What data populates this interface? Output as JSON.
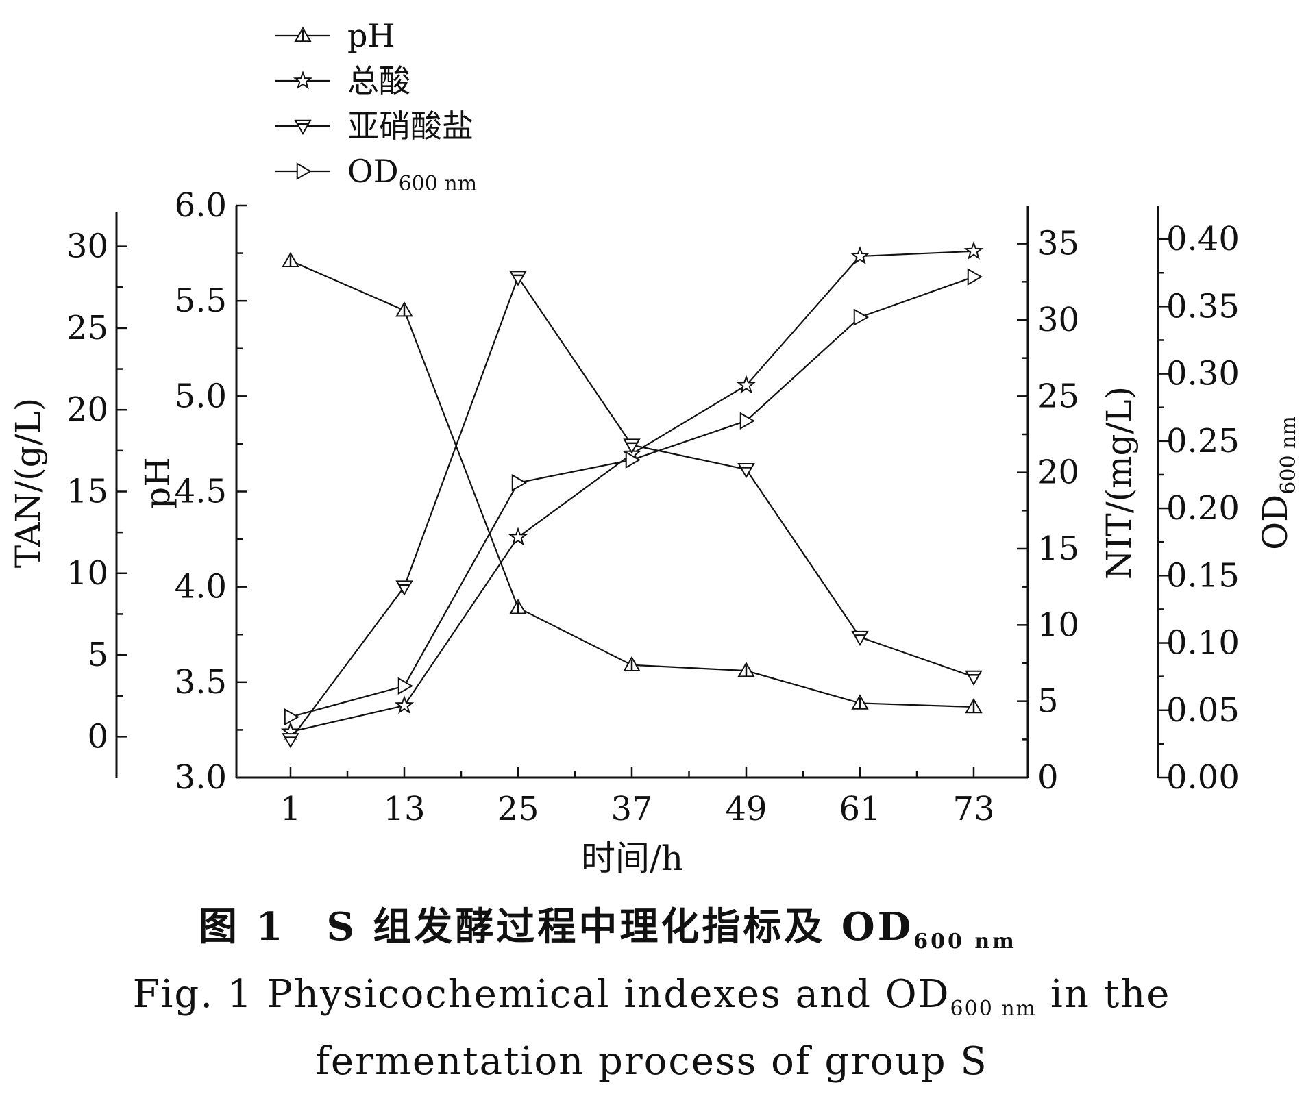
{
  "chart_data": {
    "type": "line",
    "xlabel": "时间/h",
    "x": [
      1,
      13,
      25,
      37,
      49,
      61,
      73
    ],
    "axes": {
      "pH": {
        "label": "pH",
        "range": [
          3.0,
          6.0
        ],
        "ticks": [
          "3.0",
          "3.5",
          "4.0",
          "4.5",
          "5.0",
          "5.5",
          "6.0"
        ]
      },
      "TAN": {
        "label": "TAN/(g/L)",
        "range": [
          -2.5,
          32.5
        ],
        "ticks": [
          "0",
          "5",
          "10",
          "15",
          "20",
          "25",
          "30"
        ]
      },
      "NIT": {
        "label": "NIT/(mg/L)",
        "range": [
          0,
          37.5
        ],
        "ticks": [
          "0",
          "5",
          "10",
          "15",
          "20",
          "25",
          "30",
          "35"
        ]
      },
      "OD": {
        "label": "OD",
        "label_sub": "600 nm",
        "range": [
          0,
          0.425
        ],
        "ticks": [
          "0.00",
          "0.05",
          "0.10",
          "0.15",
          "0.20",
          "0.25",
          "0.30",
          "0.35",
          "0.40"
        ]
      }
    },
    "series": [
      {
        "name": "pH",
        "axis": "pH",
        "marker": "triangle-up",
        "values": [
          5.71,
          5.45,
          3.89,
          3.59,
          3.56,
          3.39,
          3.37
        ]
      },
      {
        "name": "总酸",
        "axis": "TAN",
        "marker": "star",
        "values": [
          0.3,
          1.9,
          12.2,
          17.3,
          21.5,
          29.4,
          29.7
        ]
      },
      {
        "name": "亚硝酸盐",
        "axis": "NIT",
        "marker": "triangle-down",
        "values": [
          2.5,
          12.5,
          32.8,
          21.8,
          20.2,
          9.2,
          6.6
        ]
      },
      {
        "name": "OD",
        "name_sub": "600 nm",
        "axis": "OD",
        "marker": "triangle-right",
        "values": [
          0.045,
          0.068,
          0.219,
          0.236,
          0.265,
          0.342,
          0.372
        ]
      }
    ],
    "legend": "top-left, above plot"
  },
  "caption": {
    "cn_prefix": "图 1　S 组发酵过程中理化指标及 OD",
    "cn_sub": "600 nm",
    "en_line1_prefix": "Fig. 1 Physicochemical indexes and OD",
    "en_line1_sub": "600 nm",
    "en_line1_suffix": " in the",
    "en_line2": "fermentation process of group S"
  }
}
